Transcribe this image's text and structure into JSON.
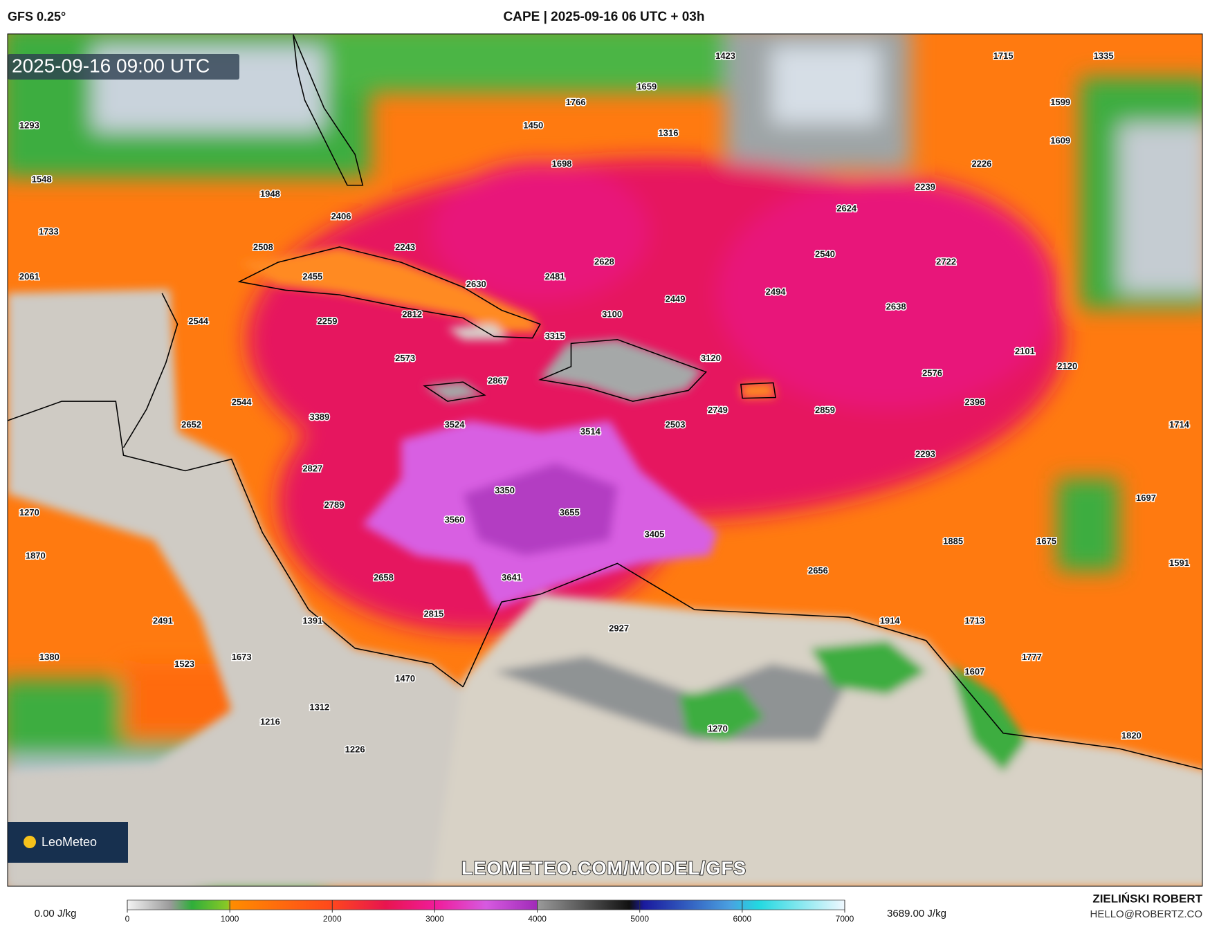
{
  "header": {
    "model": "GFS 0.25°",
    "title": "CAPE | 2025-09-16 06 UTC + 03h"
  },
  "map": {
    "valid_time": "2025-09-16 09:00 UTC",
    "watermark": "LEOMETEO.COM/MODEL/GFS",
    "logo": "LeoMeteo",
    "values": [
      1423,
      1715,
      1335,
      1659,
      1766,
      1599,
      1293,
      1450,
      1316,
      1609,
      1548,
      1698,
      2226,
      2239,
      1948,
      2406,
      2624,
      1733,
      2508,
      2243,
      2540,
      2722,
      2628,
      2061,
      2455,
      2481,
      2630,
      2494,
      2449,
      2638,
      3100,
      2812,
      2544,
      2259,
      3315,
      2101,
      3120,
      2120,
      2573,
      2576,
      2867,
      2544,
      2396,
      2749,
      2859,
      3389,
      2652,
      3524,
      2503,
      1714,
      3514,
      2293,
      2827,
      3350,
      1697,
      1270,
      2789,
      3655,
      3560,
      3405,
      1885,
      1675,
      1870,
      1591,
      2658,
      3641,
      2656,
      2491,
      2815,
      1391,
      1914,
      1713,
      2927,
      1380,
      1523,
      1673,
      1777,
      1607,
      1470,
      1312,
      1216,
      1270,
      1820,
      1226
    ]
  },
  "colorbar": {
    "min_label": "0.00 J/kg",
    "max_label": "3689.00 J/kg",
    "range": [
      0,
      7000
    ],
    "ticks": [
      0,
      1000,
      2000,
      3000,
      4000,
      5000,
      6000,
      7000
    ]
  },
  "footer": {
    "author": "ZIELIŃSKI ROBERT",
    "email": "HELLO@ROBERTZ.CO"
  }
}
